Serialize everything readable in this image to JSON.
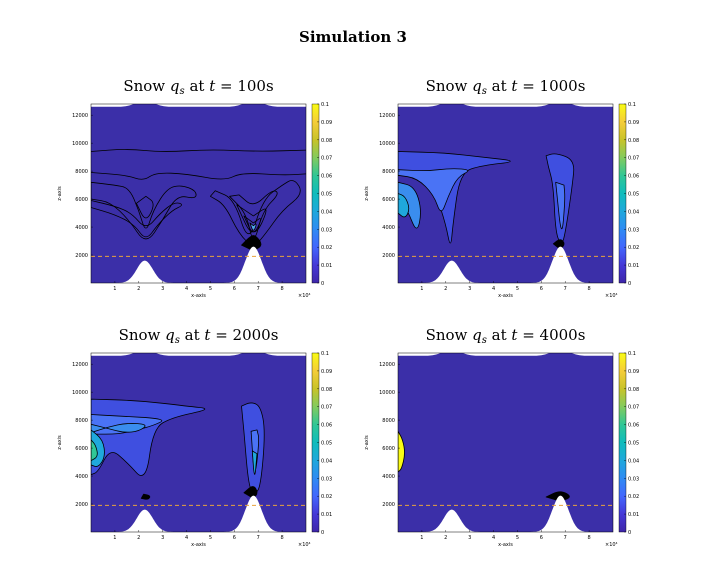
{
  "figure_title": "Simulation 3",
  "colors": {
    "background": "#3b2fa8",
    "mountain": "#ffffff",
    "contour": "#000000",
    "dashed_line": "#e8a23c",
    "colormap": [
      "#3e26a8",
      "#4538d7",
      "#4367fd",
      "#2f8bf3",
      "#1fa8dc",
      "#10bcbc",
      "#30c796",
      "#83cb5e",
      "#c8c329",
      "#f5cd39",
      "#f9fb15"
    ]
  },
  "chart_data": [
    {
      "type": "heatmap",
      "title": "Snow qs at t = 100s",
      "title_parts": {
        "prefix": "Snow ",
        "var": "q",
        "sub": "s",
        "mid": " at ",
        "tvar": "t",
        "rest": " = 100s"
      },
      "xlabel": "x-axis",
      "ylabel": "z-axis",
      "x_ticks": [
        "1",
        "2",
        "3",
        "4",
        "5",
        "6",
        "7",
        "8"
      ],
      "x_exponent": "×10⁴",
      "y_ticks": [
        "2000",
        "4000",
        "6000",
        "8000",
        "10000",
        "12000"
      ],
      "xlim": [
        0,
        9
      ],
      "ylim": [
        0,
        12800
      ],
      "colorbar": {
        "ticks": [
          "0",
          "0.01",
          "0.02",
          "0.03",
          "0.04",
          "0.05",
          "0.06",
          "0.07",
          "0.08",
          "0.09",
          "0.1"
        ],
        "range": [
          0,
          0.1
        ]
      },
      "dashed_level_z": 1900,
      "mountains": [
        {
          "center_x": 2.25,
          "height_z": 1600
        },
        {
          "center_x": 6.8,
          "height_z": 2600
        }
      ]
    },
    {
      "type": "heatmap",
      "title": "Snow qs at t = 1000s",
      "title_parts": {
        "prefix": "Snow ",
        "var": "q",
        "sub": "s",
        "mid": " at ",
        "tvar": "t",
        "rest": " = 1000s"
      },
      "xlabel": "x-axis",
      "ylabel": "z-axis",
      "x_ticks": [
        "1",
        "2",
        "3",
        "4",
        "5",
        "6",
        "7",
        "8"
      ],
      "x_exponent": "×10⁴",
      "y_ticks": [
        "2000",
        "4000",
        "6000",
        "8000",
        "10000",
        "12000"
      ],
      "xlim": [
        0,
        9
      ],
      "ylim": [
        0,
        12800
      ],
      "colorbar": {
        "ticks": [
          "0",
          "0.01",
          "0.02",
          "0.03",
          "0.04",
          "0.05",
          "0.06",
          "0.07",
          "0.08",
          "0.09",
          "0.1"
        ],
        "range": [
          0,
          0.1
        ]
      },
      "dashed_level_z": 1900,
      "mountains": [
        {
          "center_x": 2.25,
          "height_z": 1600
        },
        {
          "center_x": 6.8,
          "height_z": 2600
        }
      ]
    },
    {
      "type": "heatmap",
      "title": "Snow qs at t = 2000s",
      "title_parts": {
        "prefix": "Snow ",
        "var": "q",
        "sub": "s",
        "mid": " at ",
        "tvar": "t",
        "rest": " = 2000s"
      },
      "xlabel": "x-axis",
      "ylabel": "z-axis",
      "x_ticks": [
        "1",
        "2",
        "3",
        "4",
        "5",
        "6",
        "7",
        "8"
      ],
      "x_exponent": "×10⁴",
      "y_ticks": [
        "2000",
        "4000",
        "6000",
        "8000",
        "10000",
        "12000"
      ],
      "xlim": [
        0,
        9
      ],
      "ylim": [
        0,
        12800
      ],
      "colorbar": {
        "ticks": [
          "0",
          "0.01",
          "0.02",
          "0.03",
          "0.04",
          "0.05",
          "0.06",
          "0.07",
          "0.08",
          "0.09",
          "0.1"
        ],
        "range": [
          0,
          0.1
        ]
      },
      "dashed_level_z": 1900,
      "mountains": [
        {
          "center_x": 2.25,
          "height_z": 1600
        },
        {
          "center_x": 6.8,
          "height_z": 2600
        }
      ]
    },
    {
      "type": "heatmap",
      "title": "Snow qs at t = 4000s",
      "title_parts": {
        "prefix": "Snow ",
        "var": "q",
        "sub": "s",
        "mid": " at ",
        "tvar": "t",
        "rest": " = 4000s"
      },
      "xlabel": "x-axis",
      "ylabel": "z-axis",
      "x_ticks": [
        "1",
        "2",
        "3",
        "4",
        "5",
        "6",
        "7",
        "8"
      ],
      "x_exponent": "×10⁴",
      "y_ticks": [
        "2000",
        "4000",
        "6000",
        "8000",
        "10000",
        "12000"
      ],
      "xlim": [
        0,
        9
      ],
      "ylim": [
        0,
        12800
      ],
      "colorbar": {
        "ticks": [
          "0",
          "0.01",
          "0.02",
          "0.03",
          "0.04",
          "0.05",
          "0.06",
          "0.07",
          "0.08",
          "0.09",
          "0.1"
        ],
        "range": [
          0,
          0.1
        ]
      },
      "dashed_level_z": 1900,
      "mountains": [
        {
          "center_x": 2.25,
          "height_z": 1600
        },
        {
          "center_x": 6.8,
          "height_z": 2600
        }
      ]
    }
  ]
}
